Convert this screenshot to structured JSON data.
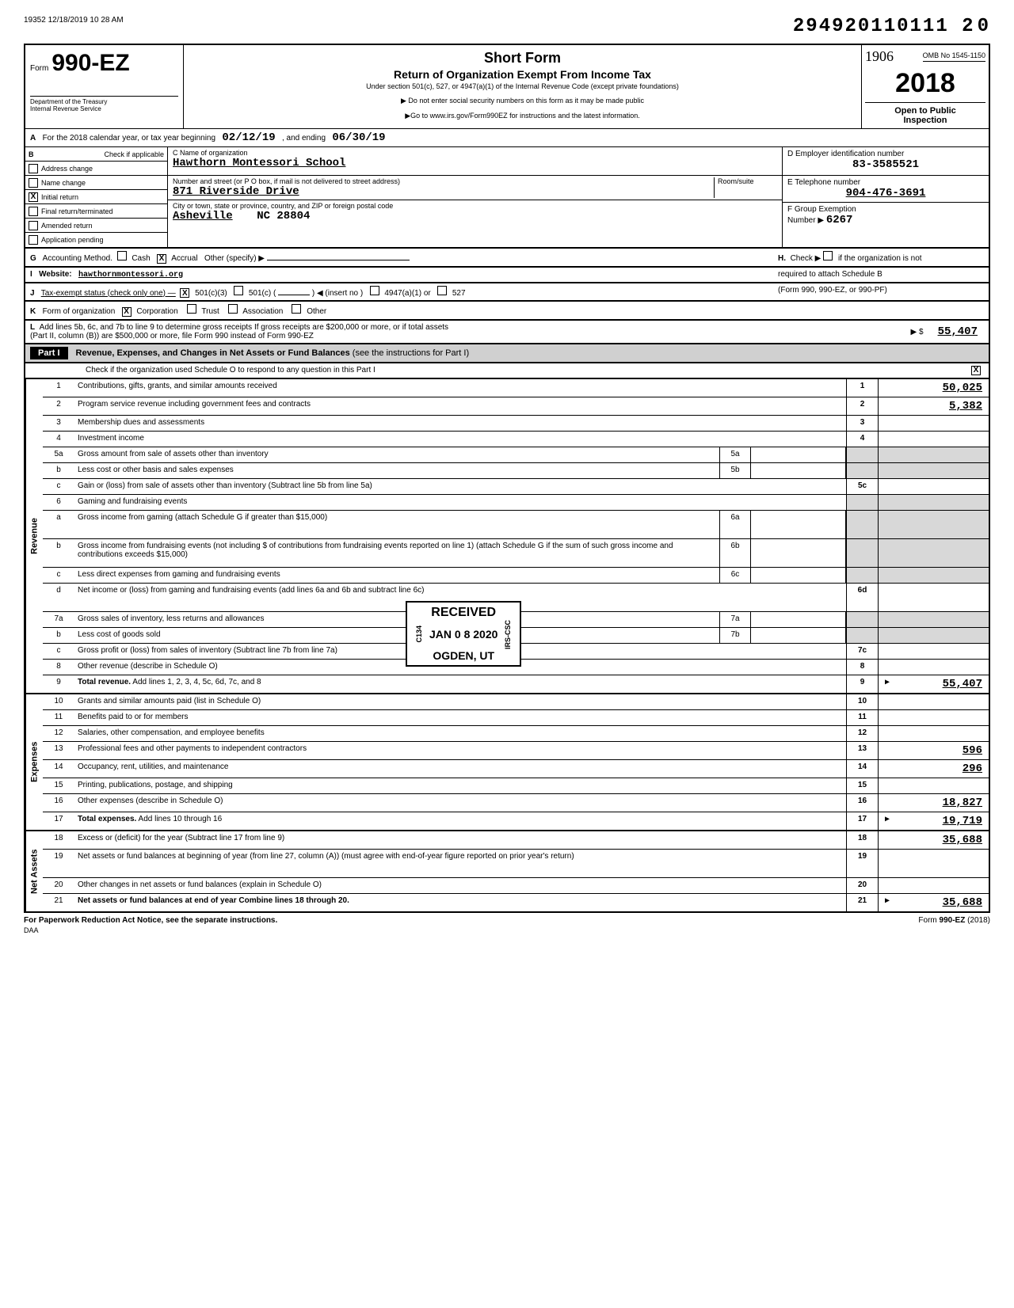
{
  "header": {
    "timestamp": "19352 12/18/2019 10 28 AM",
    "topright_num": "294920110111 2",
    "topright_trail": "0",
    "hand_num": "1906",
    "form_prefix": "Form",
    "form_num": "990-EZ",
    "dept1": "Department of the Treasury",
    "dept2": "Internal Revenue Service",
    "title_main": "Short Form",
    "title_sub": "Return of Organization Exempt From Income Tax",
    "title_small": "Under section 501(c), 527, or 4947(a)(1) of the Internal Revenue Code (except private foundations)",
    "arrow1": "▶ Do not enter social security numbers on this form as it may be made public",
    "arrow2": "▶Go to www.irs.gov/Form990EZ for instructions and the latest information.",
    "omb": "OMB No 1545-1150",
    "year": "2018",
    "open_pub1": "Open to Public",
    "open_pub2": "Inspection"
  },
  "lineA": {
    "prefix": "A",
    "text": "For the 2018 calendar year, or tax year beginning",
    "begin": "02/12/19",
    "mid": ", and ending",
    "end": "06/30/19"
  },
  "secB": {
    "b_label": "B",
    "check_header": "Check if applicable",
    "checks": [
      {
        "label": "Address change",
        "x": ""
      },
      {
        "label": "Name change",
        "x": ""
      },
      {
        "label": "Initial return",
        "x": "X"
      },
      {
        "label": "Final return/terminated",
        "x": ""
      },
      {
        "label": "Amended return",
        "x": ""
      },
      {
        "label": "Application pending",
        "x": ""
      }
    ],
    "c_label": "C   Name of organization",
    "org_name": "Hawthorn Montessori School",
    "addr_label": "Number and street (or P O  box, if mail is not delivered to street address)",
    "room_label": "Room/suite",
    "street": "871 Riverside Drive",
    "city_label": "City or town, state or province, country, and ZIP or foreign postal code",
    "city": "Asheville",
    "state_zip": "NC  28804",
    "d_label": "D  Employer identification number",
    "ein": "83-3585521",
    "e_label": "E  Telephone number",
    "phone": "904-476-3691",
    "f_label": "F  Group Exemption",
    "f_num_label": "Number  ▶",
    "f_num": "6267"
  },
  "lineG": {
    "g": "G",
    "text": "Accounting Method.",
    "cash": "Cash",
    "accrual": "Accrual",
    "other": "Other (specify) ▶",
    "x": "X",
    "h": "H.",
    "h_text": "Check ▶",
    "h_suffix": "if the organization is not",
    "h_line2": "required to attach Schedule B",
    "h_line3": "(Form 990, 990-EZ, or 990-PF)"
  },
  "lineI": {
    "i": "I",
    "label": "Website:",
    "val": "hawthornmontessori.org"
  },
  "lineJ": {
    "j": "J",
    "text": "Tax-exempt status (check only one) —",
    "x": "X",
    "o1": "501(c)(3)",
    "o2": "501(c) (",
    "o2b": ") ◀ (insert no )",
    "o3": "4947(a)(1) or",
    "o4": "527"
  },
  "lineK": {
    "k": "K",
    "text": "Form of organization",
    "x": "X",
    "o1": "Corporation",
    "o2": "Trust",
    "o3": "Association",
    "o4": "Other"
  },
  "lineL": {
    "l": "L",
    "text1": "Add lines 5b, 6c, and 7b to line 9 to determine gross receipts  If gross receipts are $200,000 or more, or if total assets",
    "text2": "(Part II, column (B)) are $500,000 or more, file Form 990 instead of Form 990-EZ",
    "arrow": "▶ $",
    "amt": "55,407"
  },
  "part1": {
    "label": "Part I",
    "title": "Revenue, Expenses, and Changes in Net Assets or Fund Balances",
    "suffix": "(see the instructions for Part I)",
    "check_line": "Check if the organization used Schedule O to respond to any question in this Part I",
    "check_x": "X"
  },
  "sides": {
    "revenue": "Revenue",
    "expenses": "Expenses",
    "netassets": "Net Assets"
  },
  "rows": [
    {
      "n": "1",
      "d": "Contributions, gifts, grants, and similar amounts received",
      "en": "1",
      "ev": "50,025"
    },
    {
      "n": "2",
      "d": "Program service revenue including government fees and contracts",
      "en": "2",
      "ev": "5,382"
    },
    {
      "n": "3",
      "d": "Membership dues and assessments",
      "en": "3",
      "ev": ""
    },
    {
      "n": "4",
      "d": "Investment income",
      "en": "4",
      "ev": ""
    },
    {
      "n": "5a",
      "d": "Gross amount from sale of assets other than inventory",
      "mn": "5a",
      "mv": "",
      "en": "",
      "ev": "",
      "shaded": true
    },
    {
      "n": "b",
      "d": "Less  cost or other basis and sales expenses",
      "mn": "5b",
      "mv": "",
      "en": "",
      "ev": "",
      "shaded": true
    },
    {
      "n": "c",
      "d": "Gain or (loss) from sale of assets other than inventory (Subtract line 5b from line 5a)",
      "en": "5c",
      "ev": ""
    },
    {
      "n": "6",
      "d": "Gaming and fundraising events",
      "en": "",
      "ev": "",
      "shaded": true
    },
    {
      "n": "a",
      "d": "Gross income from gaming (attach Schedule G if greater than $15,000)",
      "mn": "6a",
      "mv": "",
      "en": "",
      "ev": "",
      "shaded": true,
      "tall": true
    },
    {
      "n": "b",
      "d": "Gross income from fundraising events (not including $                        of contributions from fundraising events reported on line 1) (attach Schedule G if the sum of such gross income and contributions exceeds $15,000)",
      "mn": "6b",
      "mv": "",
      "en": "",
      "ev": "",
      "shaded": true,
      "tall": true
    },
    {
      "n": "c",
      "d": "Less  direct expenses from gaming and fundraising events",
      "mn": "6c",
      "mv": "",
      "en": "",
      "ev": "",
      "shaded": true
    },
    {
      "n": "d",
      "d": "Net income or (loss) from gaming and fundraising events (add lines 6a and 6b and subtract line 6c)",
      "en": "6d",
      "ev": "",
      "tall": true
    },
    {
      "n": "7a",
      "d": "Gross sales of inventory, less returns and allowances",
      "mn": "7a",
      "mv": "",
      "en": "",
      "ev": "",
      "shaded": true
    },
    {
      "n": "b",
      "d": "Less  cost of goods sold",
      "mn": "7b",
      "mv": "",
      "en": "",
      "ev": "",
      "shaded": true
    },
    {
      "n": "c",
      "d": "Gross profit or (loss) from sales of inventory (Subtract line 7b from line 7a)",
      "en": "7c",
      "ev": ""
    },
    {
      "n": "8",
      "d": "Other revenue (describe in Schedule O)",
      "en": "8",
      "ev": ""
    },
    {
      "n": "9",
      "d": "Total revenue. Add lines 1, 2, 3, 4, 5c, 6d, 7c, and 8",
      "en": "9",
      "ev": "55,407",
      "bold": true,
      "tri": true
    },
    {
      "n": "10",
      "d": "Grants and similar amounts paid (list in Schedule O)",
      "en": "10",
      "ev": ""
    },
    {
      "n": "11",
      "d": "Benefits paid to or for members",
      "en": "11",
      "ev": ""
    },
    {
      "n": "12",
      "d": "Salaries, other compensation, and employee benefits",
      "en": "12",
      "ev": ""
    },
    {
      "n": "13",
      "d": "Professional fees and other payments to independent contractors",
      "en": "13",
      "ev": "596"
    },
    {
      "n": "14",
      "d": "Occupancy, rent, utilities, and maintenance",
      "en": "14",
      "ev": "296"
    },
    {
      "n": "15",
      "d": "Printing, publications, postage, and shipping",
      "en": "15",
      "ev": ""
    },
    {
      "n": "16",
      "d": "Other expenses (describe in Schedule O)",
      "en": "16",
      "ev": "18,827"
    },
    {
      "n": "17",
      "d": "Total expenses. Add lines 10 through 16",
      "en": "17",
      "ev": "19,719",
      "bold": true,
      "tri": true
    },
    {
      "n": "18",
      "d": "Excess or (deficit) for the year (Subtract line 17 from line 9)",
      "en": "18",
      "ev": "35,688"
    },
    {
      "n": "19",
      "d": "Net assets or fund balances at beginning of year (from line 27, column (A)) (must agree with end-of-year figure reported on prior year's return)",
      "en": "19",
      "ev": "",
      "tall": true
    },
    {
      "n": "20",
      "d": "Other changes in net assets or fund balances (explain in Schedule O)",
      "en": "20",
      "ev": ""
    },
    {
      "n": "21",
      "d": "Net assets or fund balances at end of year  Combine lines 18 through 20",
      "en": "21",
      "ev": "35,688",
      "bold": true,
      "tri": true
    }
  ],
  "stamp": {
    "received": "RECEIVED",
    "date": "JAN 0 8 2020",
    "loc": "OGDEN, UT",
    "side1": "C134",
    "side2": "IRS-CSC"
  },
  "footer": {
    "left": "For Paperwork Reduction Act Notice, see the separate instructions.",
    "mid": "DAA",
    "right": "Form 990-EZ (2018)"
  }
}
